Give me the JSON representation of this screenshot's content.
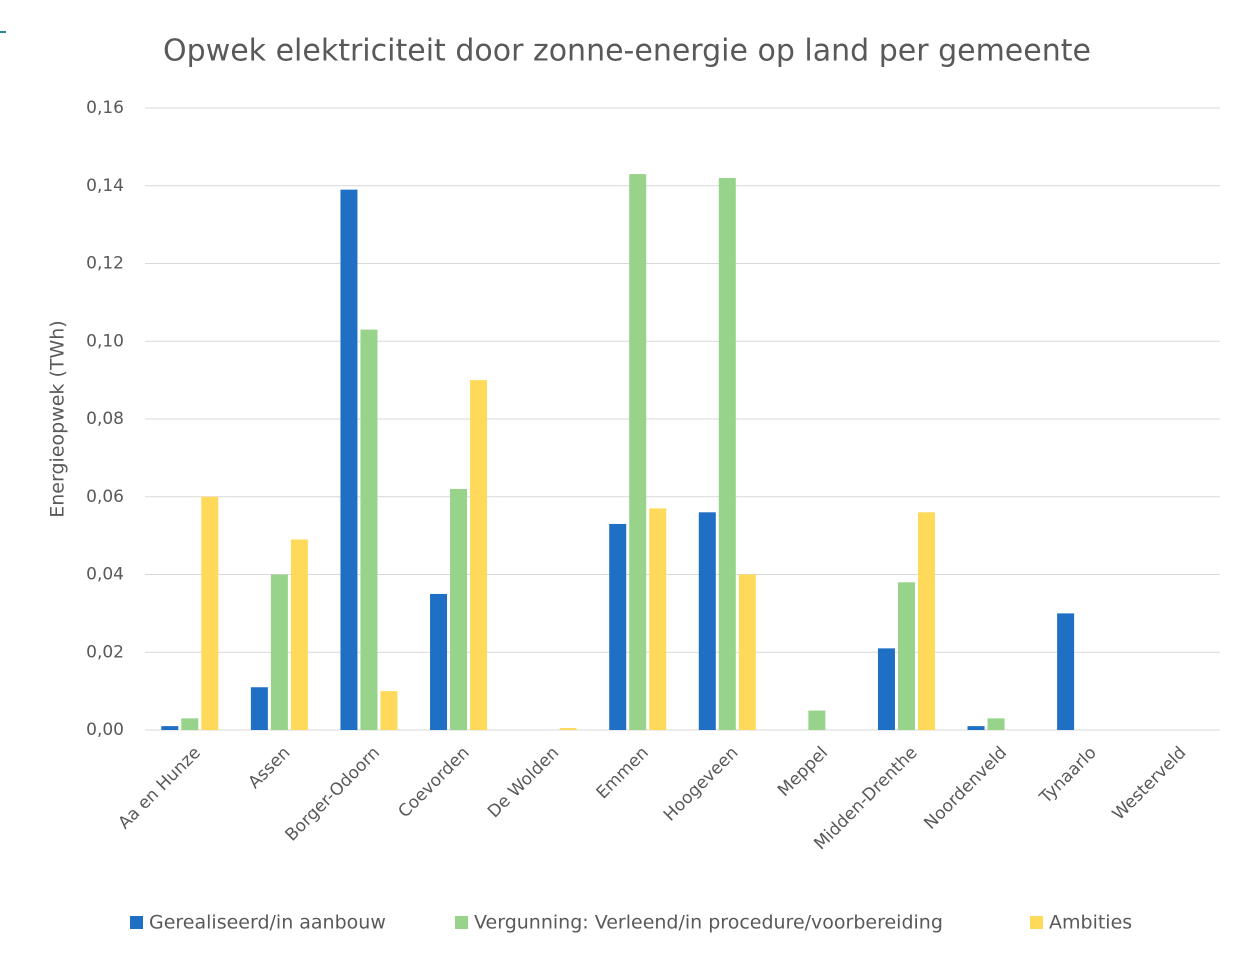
{
  "chart_data": {
    "type": "bar",
    "title": "Opwek elektriciteit door zonne-energie op land per gemeente",
    "y_label": "Energieopwek (TWh)",
    "categories": [
      "Aa en Hunze",
      "Assen",
      "Borger-Odoorn",
      "Coevorden",
      "De Wolden",
      "Emmen",
      "Hoogeveen",
      "Meppel",
      "Midden-Drenthe",
      "Noordenveld",
      "Tynaarlo",
      "Westerveld"
    ],
    "series": [
      {
        "name": "Gerealiseerd/in aanbouw",
        "color": "#1f6fc5",
        "values": [
          0.001,
          0.011,
          0.139,
          0.035,
          0,
          0.053,
          0.056,
          0,
          0.021,
          0.001,
          0.03,
          0
        ]
      },
      {
        "name": "Vergunning: Verleend/in procedure/voorbereiding",
        "color": "#97d38b",
        "values": [
          0.003,
          0.04,
          0.103,
          0.062,
          0,
          0.143,
          0.142,
          0.005,
          0.038,
          0.003,
          0,
          0
        ]
      },
      {
        "name": "Ambities",
        "color": "#ffd95a",
        "values": [
          0.06,
          0.049,
          0.01,
          0.09,
          0.0005,
          0.057,
          0.04,
          0,
          0.056,
          0,
          0,
          0
        ]
      }
    ],
    "ylim": [
      0,
      0.16
    ],
    "yticks": [
      {
        "value": 0,
        "label": "0,00"
      },
      {
        "value": 0.02,
        "label": "0,02"
      },
      {
        "value": 0.04,
        "label": "0,04"
      },
      {
        "value": 0.06,
        "label": "0,06"
      },
      {
        "value": 0.08,
        "label": "0,08"
      },
      {
        "value": 0.1,
        "label": "0,10"
      },
      {
        "value": 0.12,
        "label": "0,12"
      },
      {
        "value": 0.14,
        "label": "0,14"
      },
      {
        "value": 0.16,
        "label": "0,16"
      }
    ],
    "grid": true,
    "legend": "bottom"
  }
}
